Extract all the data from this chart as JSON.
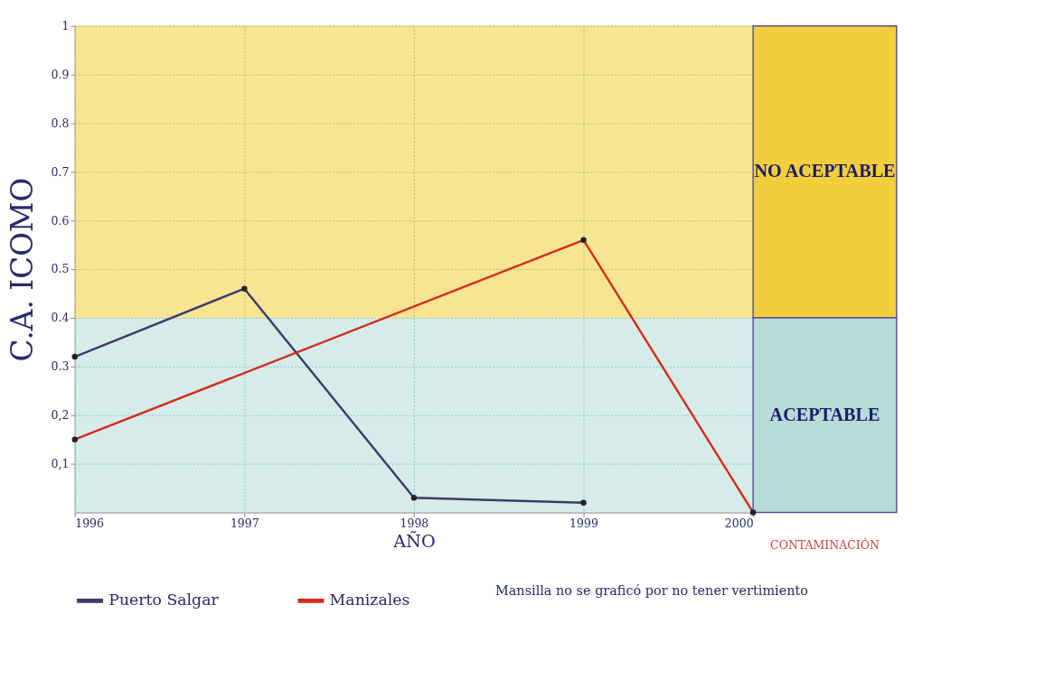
{
  "chart_data": {
    "type": "line",
    "xlabel": "AÑO",
    "ylabel": "C.A. ICOMO",
    "x": [
      1996,
      1997,
      1998,
      1999,
      2000
    ],
    "series": [
      {
        "name": "Puerto Salgar",
        "color": "#3d3a6b",
        "values": [
          0.32,
          0.46,
          0.03,
          0.02,
          null
        ]
      },
      {
        "name": "Manizales",
        "color": "#d62a1e",
        "values": [
          0.15,
          null,
          null,
          0.56,
          0
        ]
      }
    ],
    "xlim": [
      1996,
      2000
    ],
    "xticks": [
      1996,
      1997,
      1998,
      1999,
      2000
    ],
    "ylim": [
      0,
      1
    ],
    "yticks": [
      {
        "value": 0.1,
        "label": "0,1"
      },
      {
        "value": 0.2,
        "label": "0,2"
      },
      0.3,
      0.4,
      0.5,
      0.6,
      0.7,
      0.8,
      0.9,
      1
    ],
    "bands": [
      {
        "axis": "y",
        "from": 0.4,
        "to": 1,
        "label": "NO ACEPTABLE",
        "color": "#f2cf3a"
      },
      {
        "axis": "y",
        "from": 0,
        "to": 0.4,
        "label": "ACEPTABLE",
        "color": "#b5dcd6"
      }
    ],
    "annotations": [
      "CONTAMINACIÓN",
      "Mansilla no se graficó por no tener vertimiento"
    ],
    "grid": true,
    "legend": "bottom",
    "marker": "circle",
    "line_style": "solid"
  }
}
